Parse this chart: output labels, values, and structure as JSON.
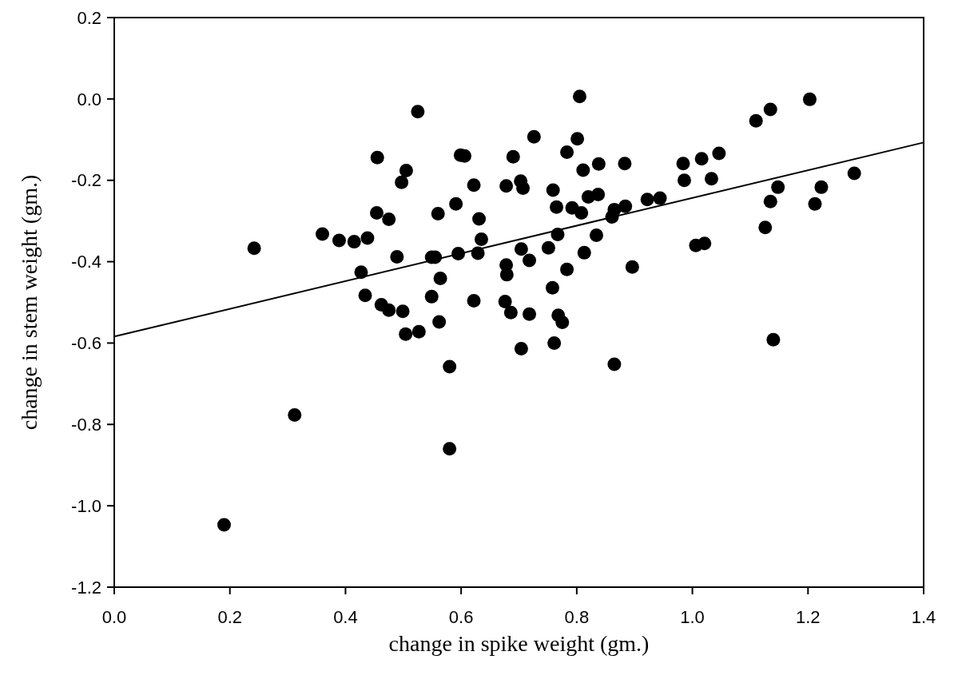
{
  "chart_data": {
    "type": "scatter",
    "xlabel": "change in spike weight (gm.)",
    "ylabel": "change in stem weight (gm.)",
    "xlim": [
      0,
      1.4
    ],
    "xticks": [
      {
        "value": 0,
        "label": "0.0"
      },
      0.2,
      0.4,
      0.6,
      0.8,
      {
        "value": 1,
        "label": "1.0"
      },
      1.2,
      1.4
    ],
    "ylim": [
      -1.2,
      0.2
    ],
    "yticks": [
      -1.2,
      {
        "value": -1,
        "label": "-1.0"
      },
      -0.8,
      -0.6,
      -0.4,
      -0.2,
      {
        "value": 0,
        "label": "0.0"
      },
      0.2
    ],
    "grid": false,
    "marker": "circle",
    "series": [
      {
        "color": "#000000",
        "x": [
          0.242,
          0.36,
          0.389,
          0.415,
          0.438,
          0.427,
          0.434,
          0.455,
          0.454,
          0.475,
          0.462,
          0.475,
          0.489,
          0.497,
          0.505,
          0.499,
          0.504,
          0.525,
          0.527,
          0.549,
          0.555,
          0.549,
          0.56,
          0.564,
          0.562,
          0.591,
          0.595,
          0.599,
          0.606,
          0.622,
          0.805,
          0.726,
          0.801,
          0.69,
          0.783,
          0.811,
          0.838,
          0.883,
          0.984,
          1.016,
          1.046,
          1.11,
          1.135,
          1.203,
          0.986,
          1.033,
          1.28,
          1.148,
          1.223,
          1.135,
          1.212,
          1.126,
          1.006,
          1.021,
          0.896,
          1.14,
          0.678,
          0.703,
          0.707,
          0.759,
          0.765,
          0.792,
          0.808,
          0.82,
          0.837,
          0.865,
          0.884,
          0.861,
          0.922,
          0.944,
          0.631,
          0.635,
          0.629,
          0.767,
          0.834,
          0.704,
          0.751,
          0.813,
          0.718,
          0.678,
          0.679,
          0.783,
          0.758,
          0.622,
          0.676,
          0.686,
          0.718,
          0.768,
          0.775,
          0.761,
          0.704,
          0.865,
          0.58,
          0.58,
          0.19,
          0.312
        ],
        "values": [
          -0.367,
          -0.332,
          -0.348,
          -0.351,
          -0.342,
          -0.426,
          -0.483,
          -0.144,
          -0.28,
          -0.296,
          -0.506,
          -0.519,
          -0.388,
          -0.205,
          -0.176,
          -0.522,
          -0.578,
          -0.031,
          -0.572,
          -0.389,
          -0.389,
          -0.486,
          -0.282,
          -0.441,
          -0.548,
          -0.258,
          -0.38,
          -0.138,
          -0.14,
          -0.212,
          0.006,
          -0.093,
          -0.098,
          -0.142,
          -0.131,
          -0.175,
          -0.16,
          -0.159,
          -0.159,
          -0.147,
          -0.134,
          -0.054,
          -0.026,
          -0.001,
          -0.2,
          -0.196,
          -0.183,
          -0.217,
          -0.217,
          -0.252,
          -0.258,
          -0.316,
          -0.36,
          -0.355,
          -0.413,
          -0.592,
          -0.214,
          -0.202,
          -0.219,
          -0.224,
          -0.266,
          -0.268,
          -0.28,
          -0.241,
          -0.235,
          -0.272,
          -0.264,
          -0.29,
          -0.247,
          -0.244,
          -0.295,
          -0.345,
          -0.379,
          -0.333,
          -0.335,
          -0.369,
          -0.366,
          -0.378,
          -0.397,
          -0.408,
          -0.432,
          -0.419,
          -0.464,
          -0.496,
          -0.498,
          -0.525,
          -0.529,
          -0.532,
          -0.549,
          -0.6,
          -0.614,
          -0.652,
          -0.658,
          -0.86,
          -1.047,
          -0.777
        ]
      },
      {
        "type": "line",
        "color": "#000000",
        "marker": "none",
        "x": [
          0,
          1.4
        ],
        "values": [
          -0.584,
          -0.107
        ]
      }
    ]
  }
}
